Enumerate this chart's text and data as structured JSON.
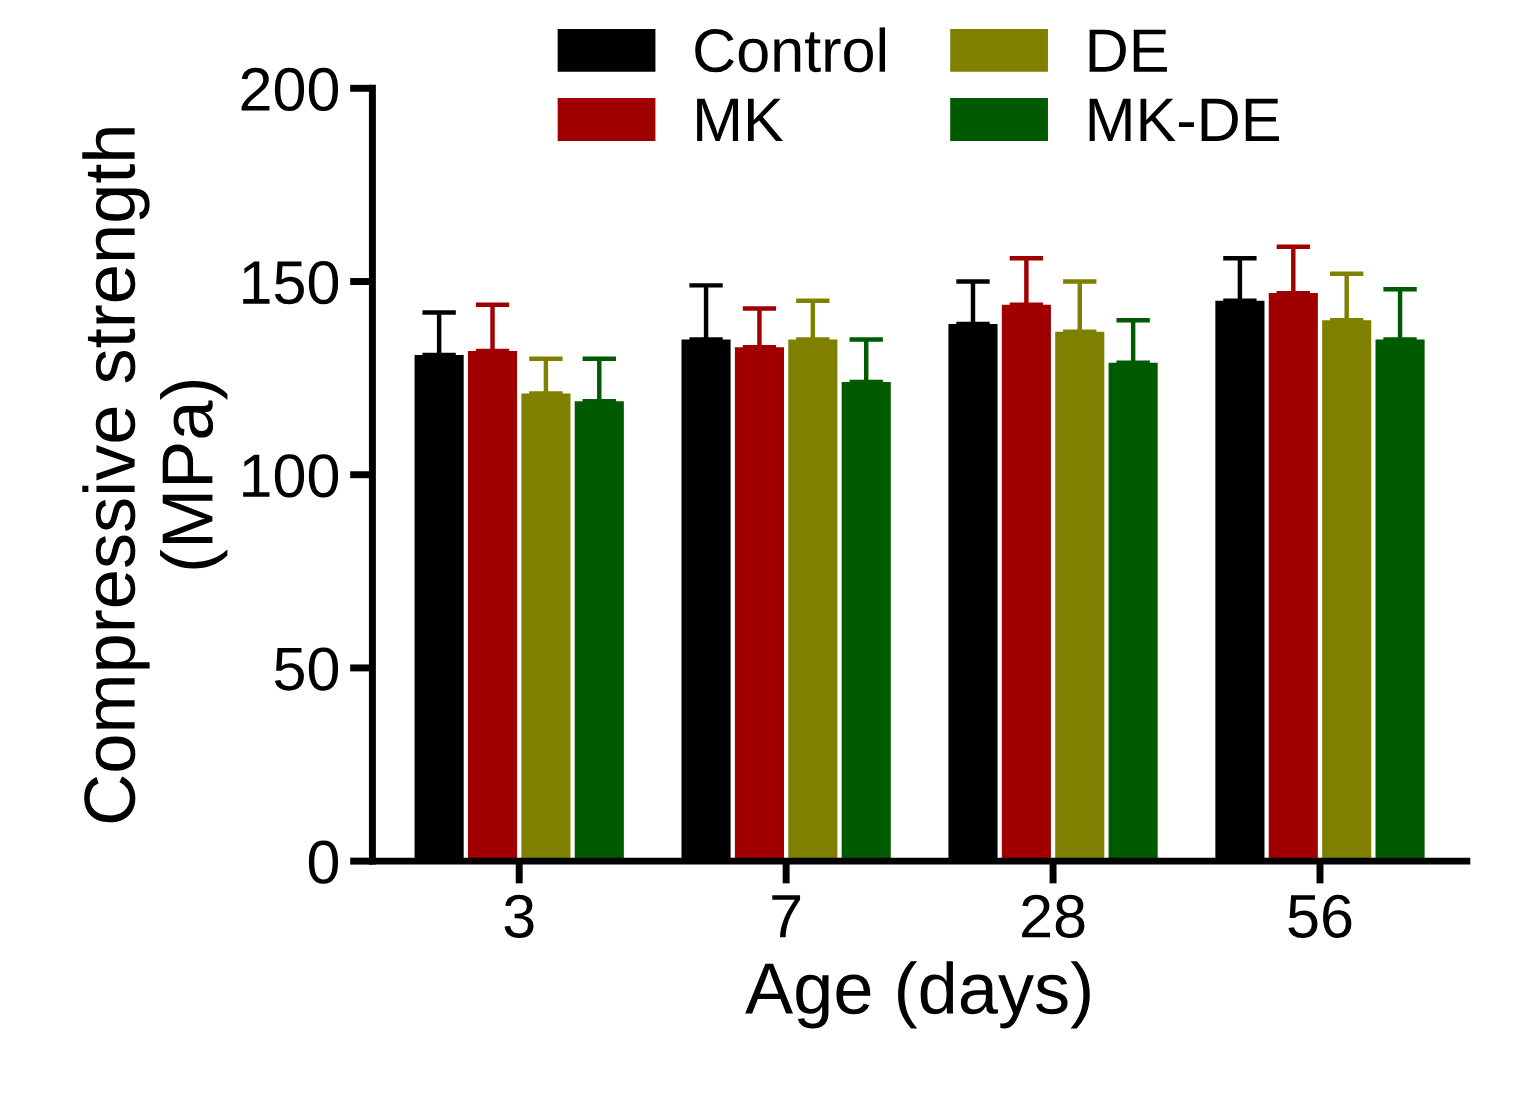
{
  "chart_data": {
    "type": "bar",
    "xlabel": "Age (days)",
    "ylabel": "Compressive strength\n(MPa)",
    "categories": [
      "3",
      "7",
      "28",
      "56"
    ],
    "ylim": [
      0,
      200
    ],
    "yticks": [
      0,
      50,
      100,
      150,
      200
    ],
    "grid": false,
    "legend": "top",
    "series": [
      {
        "name": "Control",
        "color": "#000000",
        "values": [
          131,
          135,
          139,
          145
        ],
        "errors": [
          [
            131,
            142
          ],
          [
            135,
            149
          ],
          [
            139,
            150
          ],
          [
            145,
            156
          ]
        ]
      },
      {
        "name": "MK",
        "color": "#a00000",
        "values": [
          132,
          133,
          144,
          147
        ],
        "errors": [
          [
            132,
            144
          ],
          [
            133,
            143
          ],
          [
            144,
            156
          ],
          [
            147,
            159
          ]
        ]
      },
      {
        "name": "DE",
        "color": "#808000",
        "values": [
          121,
          135,
          137,
          140
        ],
        "errors": [
          [
            121,
            130
          ],
          [
            135,
            145
          ],
          [
            137,
            150
          ],
          [
            140,
            152
          ]
        ]
      },
      {
        "name": "MK-DE",
        "color": "#005a00",
        "values": [
          119,
          124,
          129,
          135
        ],
        "errors": [
          [
            119,
            130
          ],
          [
            124,
            135
          ],
          [
            129,
            140
          ],
          [
            135,
            148
          ]
        ]
      }
    ]
  }
}
